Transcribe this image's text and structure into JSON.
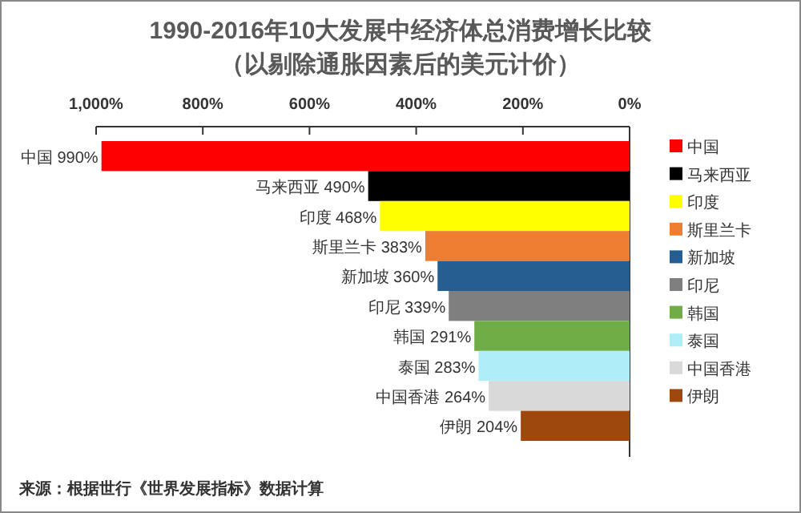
{
  "chart_data": {
    "type": "bar",
    "orientation": "horizontal",
    "title": "1990-2016年10大发展中经济体总消费增长比较",
    "subtitle": "（以剔除通胀因素后的美元计价）",
    "categories": [
      null
    ],
    "series": [
      {
        "name": "中国",
        "color": "#ff0000",
        "values": [
          990
        ],
        "value_labels": [
          "中国 990%"
        ]
      },
      {
        "name": "马来西亚",
        "color": "#000000",
        "values": [
          490
        ],
        "value_labels": [
          "马来西亚 490%"
        ]
      },
      {
        "name": "印度",
        "color": "#ffff00",
        "values": [
          468
        ],
        "value_labels": [
          "印度 468%"
        ]
      },
      {
        "name": "斯里兰卡",
        "color": "#ed7d31",
        "values": [
          383
        ],
        "value_labels": [
          "斯里兰卡 383%"
        ]
      },
      {
        "name": "新加坡",
        "color": "#255e91",
        "values": [
          360
        ],
        "value_labels": [
          "新加坡 360%"
        ]
      },
      {
        "name": "印尼",
        "color": "#7f7f7f",
        "values": [
          339
        ],
        "value_labels": [
          "印尼 339%"
        ]
      },
      {
        "name": "韩国",
        "color": "#70ad47",
        "values": [
          291
        ],
        "value_labels": [
          "韩国 291%"
        ]
      },
      {
        "name": "泰国",
        "color": "#aeeef8",
        "values": [
          283
        ],
        "value_labels": [
          "泰国 283%"
        ]
      },
      {
        "name": "中国香港",
        "color": "#d9d9d9",
        "values": [
          264
        ],
        "value_labels": [
          "中国香港 264%"
        ]
      },
      {
        "name": "伊朗",
        "color": "#9e480e",
        "values": [
          204
        ],
        "value_labels": [
          "伊朗 204%"
        ]
      }
    ],
    "xlim": [
      1000,
      0
    ],
    "xticks": [
      {
        "value": 1000,
        "label": "1,000%"
      },
      {
        "value": 800,
        "label": "800%"
      },
      {
        "value": 600,
        "label": "600%"
      },
      {
        "value": 400,
        "label": "400%"
      },
      {
        "value": 200,
        "label": "200%"
      },
      {
        "value": 0,
        "label": "0%"
      }
    ],
    "legend": "right",
    "annotations": [
      "来源：根据世行《世界发展指标》数据计算"
    ]
  }
}
